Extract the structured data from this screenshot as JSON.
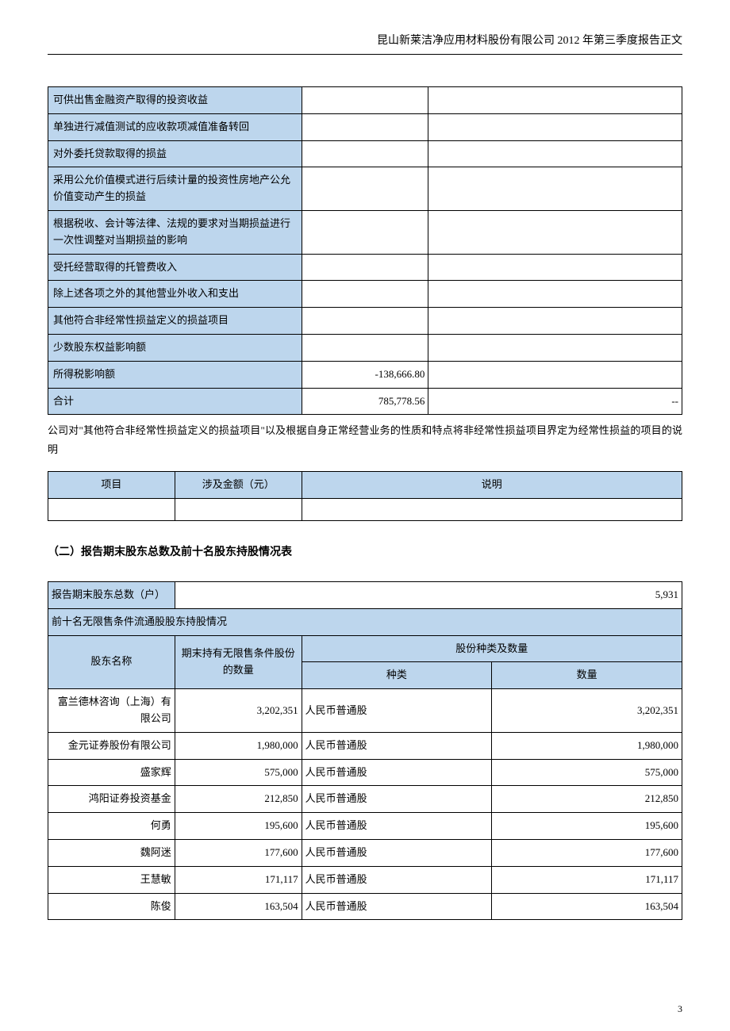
{
  "header": "昆山新莱洁净应用材料股份有限公司 2012 年第三季度报告正文",
  "table1": {
    "rows": [
      {
        "label": "可供出售金融资产取得的投资收益",
        "v1": "",
        "v2": ""
      },
      {
        "label": "单独进行减值测试的应收款项减值准备转回",
        "v1": "",
        "v2": ""
      },
      {
        "label": "对外委托贷款取得的损益",
        "v1": "",
        "v2": ""
      },
      {
        "label": "采用公允价值模式进行后续计量的投资性房地产公允价值变动产生的损益",
        "v1": "",
        "v2": ""
      },
      {
        "label": "根据税收、会计等法律、法规的要求对当期损益进行一次性调整对当期损益的影响",
        "v1": "",
        "v2": ""
      },
      {
        "label": "受托经营取得的托管费收入",
        "v1": "",
        "v2": ""
      },
      {
        "label": "除上述各项之外的其他营业外收入和支出",
        "v1": "",
        "v2": ""
      },
      {
        "label": "其他符合非经常性损益定义的损益项目",
        "v1": "",
        "v2": ""
      },
      {
        "label": "少数股东权益影响额",
        "v1": "",
        "v2": ""
      },
      {
        "label": "所得税影响额",
        "v1": "-138,666.80",
        "v2": ""
      },
      {
        "label": "合计",
        "v1": "785,778.56",
        "v2": "--"
      }
    ]
  },
  "note": "公司对\"其他符合非经常性损益定义的损益项目\"以及根据自身正常经营业务的性质和特点将非经常性损益项目界定为经常性损益的项目的说明",
  "table2": {
    "headers": [
      "项目",
      "涉及金额（元）",
      "说明"
    ]
  },
  "section2_title": "（二）报告期末股东总数及前十名股东持股情况表",
  "table3": {
    "total_label": "报告期末股东总数（户）",
    "total_value": "5,931",
    "subheader": "前十名无限售条件流通股股东持股情况",
    "h_name": "股东名称",
    "h_qty": "期末持有无限售条件股份的数量",
    "h_type_qty": "股份种类及数量",
    "h_type": "种类",
    "h_num": "数量",
    "rows": [
      {
        "name": "富兰德林咨询（上海）有限公司",
        "qty": "3,202,351",
        "type": "人民币普通股",
        "num": "3,202,351"
      },
      {
        "name": "金元证券股份有限公司",
        "qty": "1,980,000",
        "type": "人民币普通股",
        "num": "1,980,000"
      },
      {
        "name": "盛家辉",
        "qty": "575,000",
        "type": "人民币普通股",
        "num": "575,000"
      },
      {
        "name": "鸿阳证券投资基金",
        "qty": "212,850",
        "type": "人民币普通股",
        "num": "212,850"
      },
      {
        "name": "何勇",
        "qty": "195,600",
        "type": "人民币普通股",
        "num": "195,600"
      },
      {
        "name": "魏阿迷",
        "qty": "177,600",
        "type": "人民币普通股",
        "num": "177,600"
      },
      {
        "name": "王慧敏",
        "qty": "171,117",
        "type": "人民币普通股",
        "num": "171,117"
      },
      {
        "name": "陈俊",
        "qty": "163,504",
        "type": "人民币普通股",
        "num": "163,504"
      }
    ]
  },
  "page_number": "3"
}
